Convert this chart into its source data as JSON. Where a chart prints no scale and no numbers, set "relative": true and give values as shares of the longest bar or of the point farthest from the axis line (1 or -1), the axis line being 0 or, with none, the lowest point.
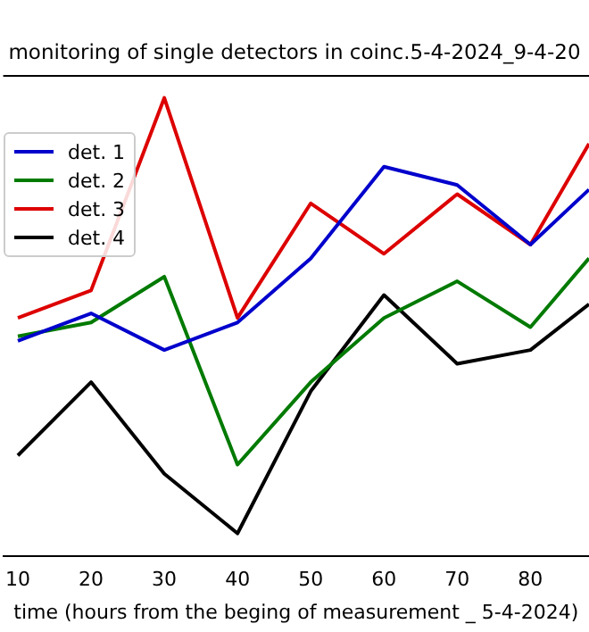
{
  "chart_data": {
    "type": "line",
    "title": "monitoring of single detectors in coinc.5-4-2024_9-4-20",
    "xlabel": "time (hours from the beging of measurement _ 5-4-2024)",
    "x": [
      10,
      20,
      30,
      40,
      50,
      60,
      70,
      80,
      88
    ],
    "xlim": [
      8,
      88
    ],
    "xticks": [
      10,
      20,
      30,
      40,
      50,
      60,
      70,
      80
    ],
    "relative": true,
    "grid": false,
    "legend": "top left",
    "marker": "none",
    "line_style": "solid",
    "series": [
      {
        "name": "det. 1",
        "color": "#0000cc",
        "values": [
          0.47,
          0.53,
          0.45,
          0.51,
          0.65,
          0.85,
          0.81,
          0.68,
          0.8
        ]
      },
      {
        "name": "det. 2",
        "color": "#007a00",
        "values": [
          0.48,
          0.51,
          0.61,
          0.2,
          0.38,
          0.52,
          0.6,
          0.5,
          0.65
        ]
      },
      {
        "name": "det. 3",
        "color": "#dd0000",
        "values": [
          0.52,
          0.58,
          1,
          0.52,
          0.77,
          0.66,
          0.79,
          0.68,
          0.9
        ]
      },
      {
        "name": "det. 4",
        "color": "#000000",
        "values": [
          0.22,
          0.38,
          0.18,
          0.05,
          0.36,
          0.57,
          0.42,
          0.45,
          0.55
        ]
      }
    ]
  }
}
